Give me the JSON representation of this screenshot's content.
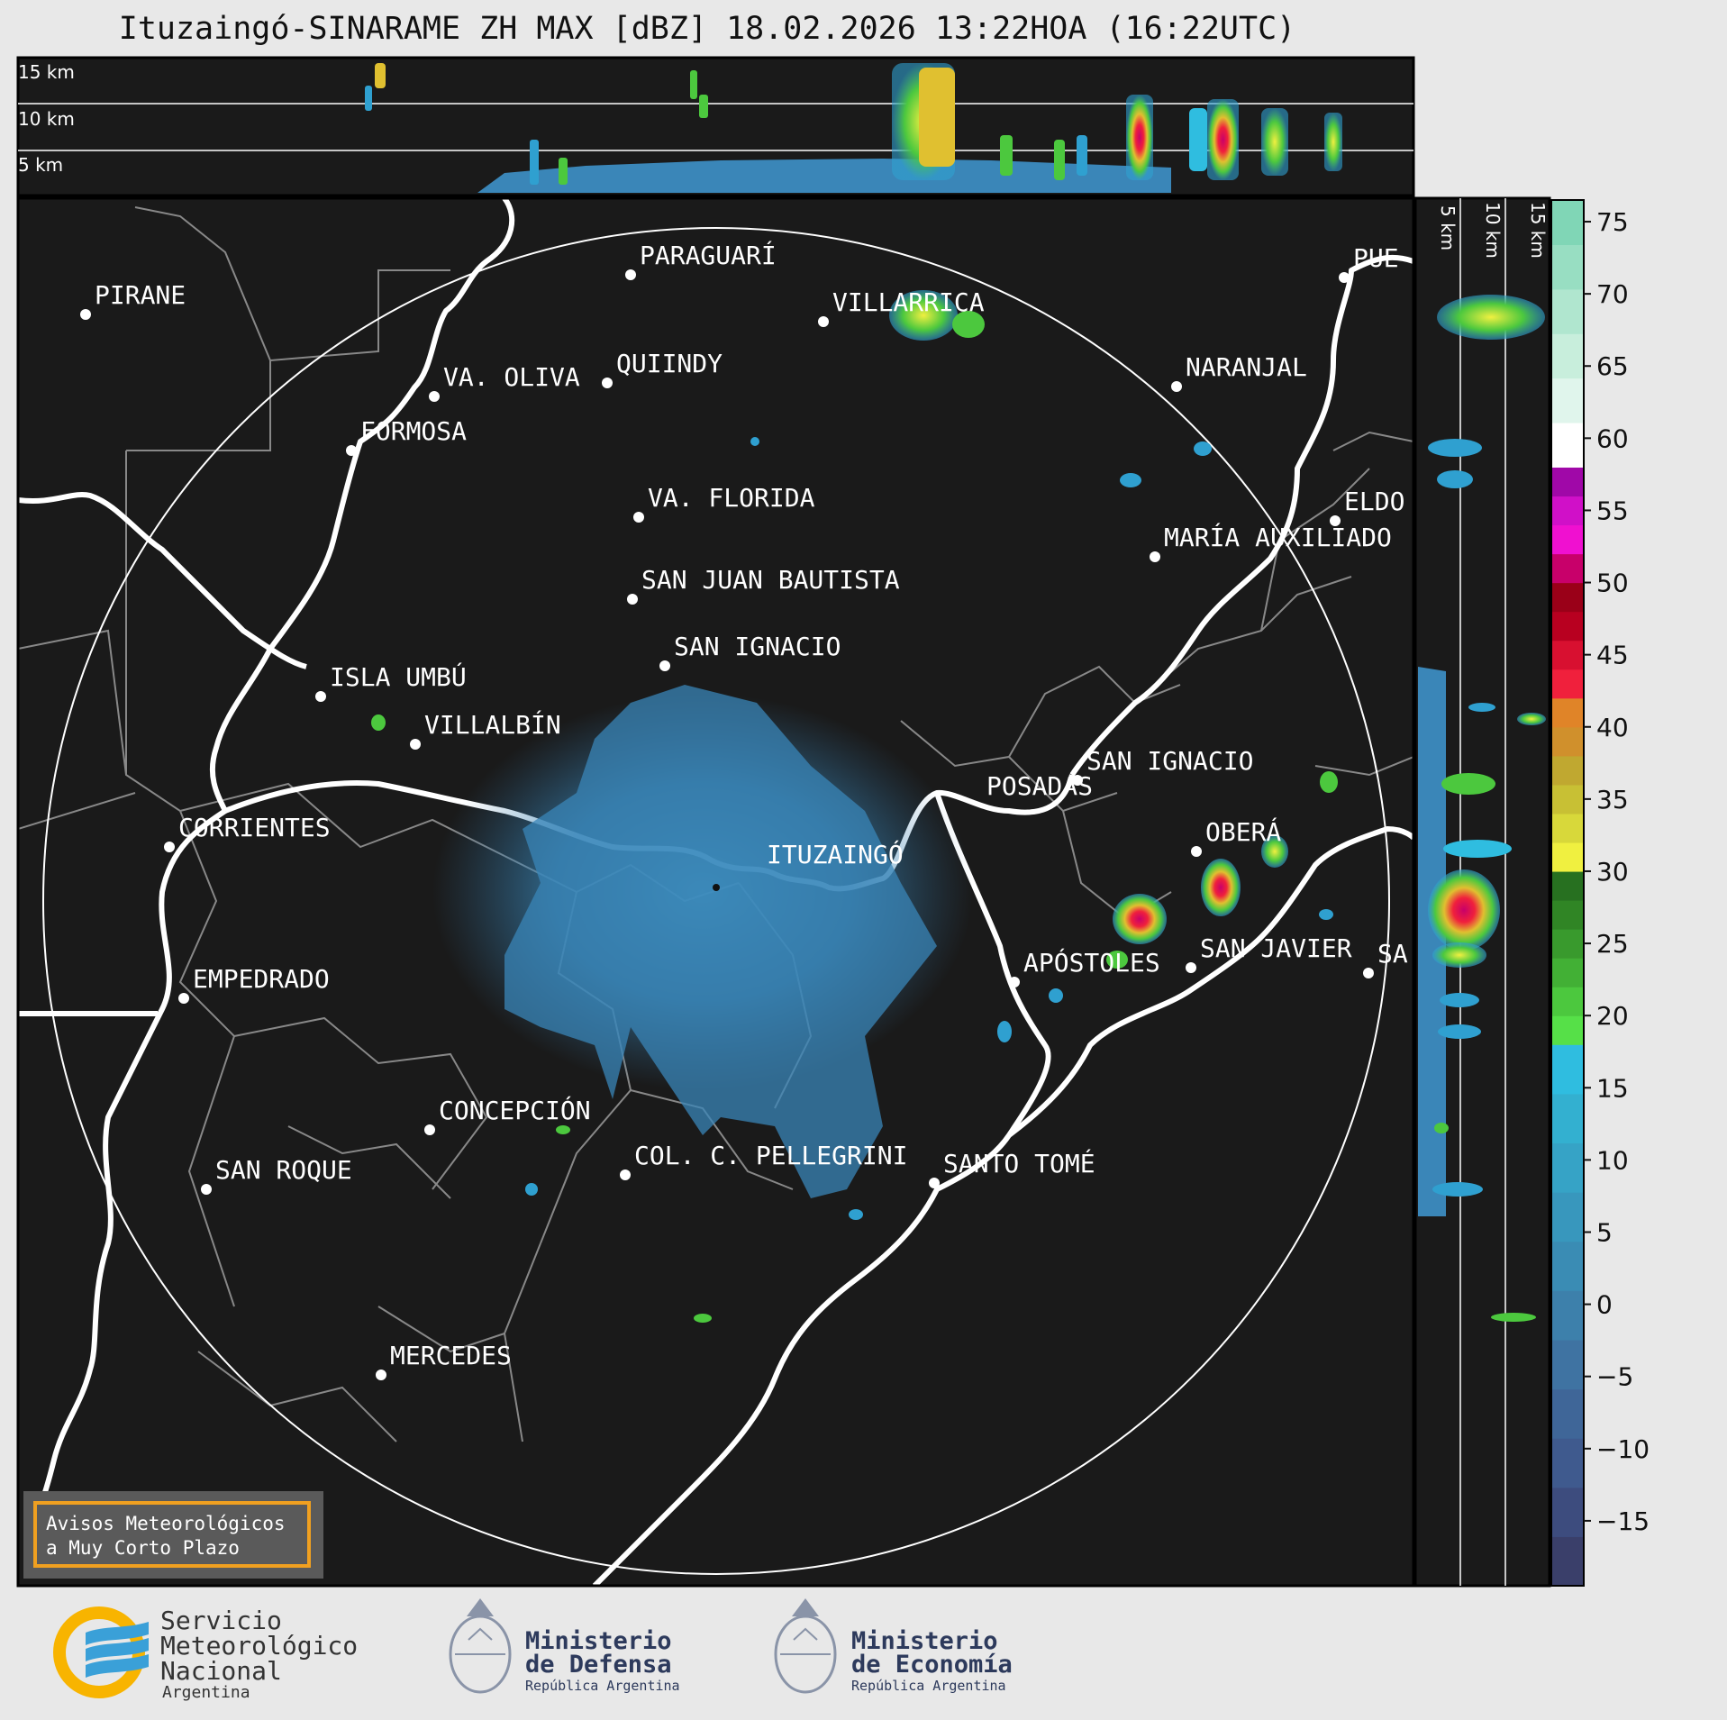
{
  "title": "Ituzaingó-SINARAME ZH MAX [dBZ] 18.02.2026 13:22HOA (16:22UTC)",
  "top_panel": {
    "altitudes": [
      "15 km",
      "10 km",
      "5 km"
    ]
  },
  "side_panel": {
    "altitudes": [
      "5 km",
      "10 km",
      "15 km"
    ]
  },
  "radar_site": "ITUZAINGÓ",
  "cities": [
    {
      "name": "PIRANE"
    },
    {
      "name": "PARAGUARÍ"
    },
    {
      "name": "VILLARRICA"
    },
    {
      "name": "VA. OLIVA"
    },
    {
      "name": "QUIINDY"
    },
    {
      "name": "FORMOSA"
    },
    {
      "name": "NARANJAL"
    },
    {
      "name": "PUE"
    },
    {
      "name": "VA. FLORIDA"
    },
    {
      "name": "ELDO"
    },
    {
      "name": "MARÍA AUXILIADO"
    },
    {
      "name": "SAN JUAN BAUTISTA"
    },
    {
      "name": "SAN IGNACIO"
    },
    {
      "name": "ISLA UMBÚ"
    },
    {
      "name": "VILLALBÍN"
    },
    {
      "name": "SAN IGNACIO"
    },
    {
      "name": "POSADAS"
    },
    {
      "name": "CORRIENTES"
    },
    {
      "name": "OBERÁ"
    },
    {
      "name": "EMPEDRADO"
    },
    {
      "name": "APÓSTOLES"
    },
    {
      "name": "SAN JAVIER"
    },
    {
      "name": "SA"
    },
    {
      "name": "CONCEPCIÓN"
    },
    {
      "name": "COL. C. PELLEGRINI"
    },
    {
      "name": "SANTO TOMÉ"
    },
    {
      "name": "SAN ROQUE"
    },
    {
      "name": "MERCEDES"
    }
  ],
  "colorbar": {
    "ticks": [
      "75",
      "70",
      "65",
      "60",
      "55",
      "50",
      "45",
      "40",
      "35",
      "30",
      "25",
      "20",
      "15",
      "10",
      "5",
      "0",
      "−5",
      "−10",
      "−15"
    ],
    "tick_values": [
      75,
      70,
      65,
      60,
      55,
      50,
      45,
      40,
      35,
      30,
      25,
      20,
      15,
      10,
      5,
      0,
      -5,
      -10,
      -15
    ],
    "range": [
      -19.5,
      76.5
    ],
    "bands": [
      {
        "from": -19.5,
        "to": 18,
        "colors": [
          "#3a3f6a",
          "#3d4c7e",
          "#3f5a8e",
          "#3f6698",
          "#3f73a2",
          "#3d80ab",
          "#3a8cb4",
          "#3897bd",
          "#36a3c6",
          "#33b0d0",
          "#2fbde0"
        ]
      },
      {
        "from": 18,
        "to": 30,
        "colors": [
          "#56e048",
          "#4cc83e",
          "#42b035",
          "#399a2d",
          "#308525",
          "#277020"
        ]
      },
      {
        "from": 30,
        "to": 42,
        "colors": [
          "#f0f040",
          "#d8d83a",
          "#c8c034",
          "#c0a830",
          "#d0902c",
          "#e08428"
        ]
      },
      {
        "from": 42,
        "to": 50,
        "colors": [
          "#f0203c",
          "#d81030",
          "#b80020",
          "#9a0018"
        ]
      },
      {
        "from": 50,
        "to": 58,
        "colors": [
          "#c8006a",
          "#f010d0",
          "#d010c8",
          "#a008a8"
        ]
      },
      {
        "from": 58,
        "to": 76.5,
        "colors": [
          "#ffffff",
          "#e0f5ec",
          "#c8eedc",
          "#b0e6cf",
          "#98dec2",
          "#80d6b6"
        ]
      }
    ]
  },
  "alert_box": {
    "line1": "Avisos Meteorológicos",
    "line2": "a Muy Corto Plazo"
  },
  "logos": {
    "smn": {
      "line1": "Servicio",
      "line2": "Meteorológico",
      "line3": "Nacional",
      "line4": "Argentina"
    },
    "defensa": {
      "line1": "Ministerio",
      "line2": "de Defensa",
      "line3": "República Argentina"
    },
    "economia": {
      "line1": "Ministerio",
      "line2": "de Economía",
      "line3": "República Argentina"
    }
  },
  "colors": {
    "background": "#1a1a1a",
    "frame": "#000000",
    "alert_border": "#f0a020",
    "smn_blue": "#3aa0d8",
    "smn_yellow": "#f8b400"
  }
}
